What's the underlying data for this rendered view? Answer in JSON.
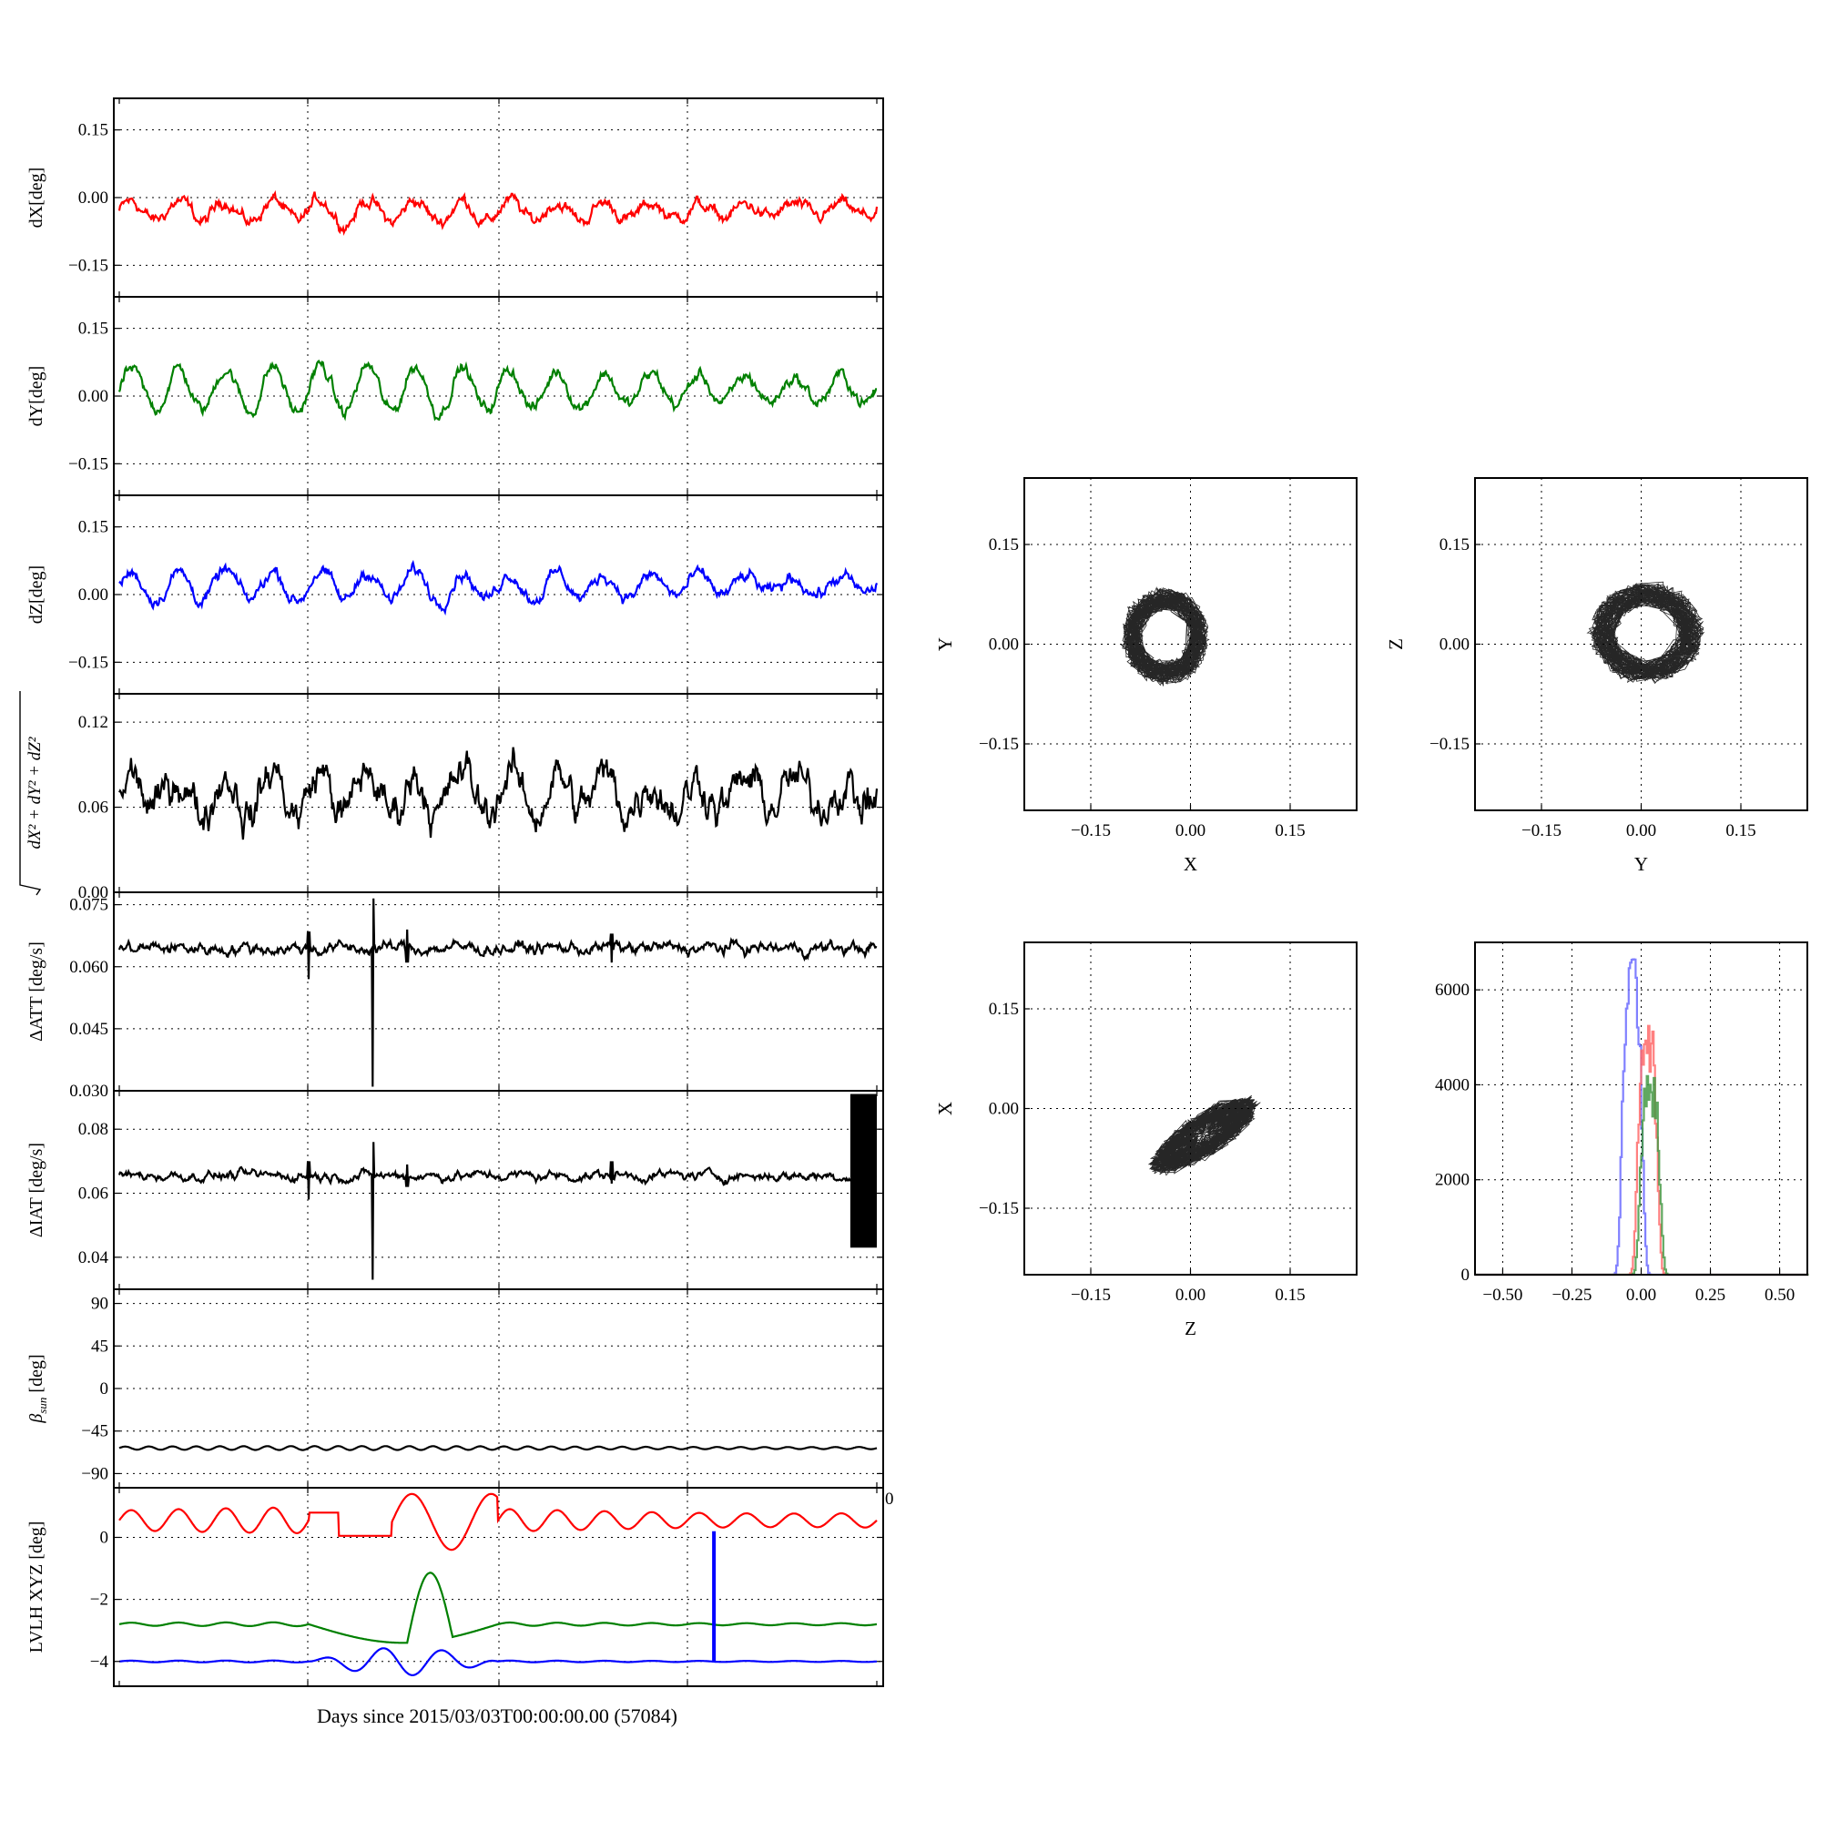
{
  "figure": {
    "xlabel": "Days since 2015/03/03T00:00:00.00 (57084)"
  },
  "chart_data": [
    {
      "type": "line",
      "panel": "dX",
      "ylabel": "dX[deg]",
      "ylim": [
        -0.22,
        0.22
      ],
      "yticks": [
        -0.15,
        0.0,
        0.15
      ],
      "ytick_labels": [
        "−0.15",
        "0.00",
        "0.15"
      ],
      "grid": true,
      "series": [
        {
          "color": "#ff0000",
          "offset": -0.03,
          "amplitude": 0.025,
          "cycles": 16,
          "noise": 0.008
        }
      ]
    },
    {
      "type": "line",
      "panel": "dY",
      "ylabel": "dY[deg]",
      "ylim": [
        -0.22,
        0.22
      ],
      "yticks": [
        -0.15,
        0.0,
        0.15
      ],
      "ytick_labels": [
        "−0.15",
        "0.00",
        "0.15"
      ],
      "grid": true,
      "series": [
        {
          "color": "#008000",
          "offset": 0.015,
          "amplitude": 0.05,
          "cycles": 16,
          "noise": 0.008
        }
      ]
    },
    {
      "type": "line",
      "panel": "dZ",
      "ylabel": "dZ[deg]",
      "ylim": [
        -0.22,
        0.22
      ],
      "yticks": [
        -0.15,
        0.0,
        0.15
      ],
      "ytick_labels": [
        "−0.15",
        "0.00",
        "0.15"
      ],
      "grid": true,
      "series": [
        {
          "color": "#0000ff",
          "offset": 0.02,
          "amplitude": 0.033,
          "cycles": 16,
          "noise": 0.008
        }
      ]
    },
    {
      "type": "line",
      "panel": "total",
      "ylabel_math": "sqrt(dX^2+dY^2+dZ^2)",
      "ylim": [
        0.0,
        0.14
      ],
      "yticks": [
        0.0,
        0.06,
        0.12
      ],
      "ytick_labels": [
        "0.00",
        "0.06",
        "0.12"
      ],
      "grid": true,
      "series": [
        {
          "color": "#000000",
          "offset": 0.07,
          "amplitude": 0.015,
          "cycles": 16,
          "noise": 0.008
        }
      ]
    },
    {
      "type": "line",
      "panel": "dATT",
      "ylabel": "ΔATT [deg/s]",
      "ylim": [
        0.03,
        0.078
      ],
      "yticks": [
        0.03,
        0.045,
        0.06,
        0.075
      ],
      "ytick_labels": [
        "0.030",
        "0.045",
        "0.060",
        "0.075"
      ],
      "grid": true,
      "series": [
        {
          "color": "#000000",
          "offset": 0.0645,
          "noise": 0.0008,
          "spikes": [
            [
              0.25,
              0.057,
              0.0685
            ],
            [
              0.335,
              0.031,
              0.0765
            ],
            [
              0.38,
              0.061,
              0.069
            ],
            [
              0.65,
              0.061,
              0.068
            ]
          ]
        }
      ]
    },
    {
      "type": "line",
      "panel": "dIAT",
      "ylabel": "ΔIAT [deg/s]",
      "ylim": [
        0.03,
        0.092
      ],
      "yticks": [
        0.04,
        0.06,
        0.08
      ],
      "ytick_labels": [
        "0.04",
        "0.06",
        "0.08"
      ],
      "grid": true,
      "series": [
        {
          "color": "#000000",
          "offset": 0.0655,
          "noise": 0.0008,
          "spikes": [
            [
              0.25,
              0.058,
              0.07
            ],
            [
              0.335,
              0.033,
              0.076
            ],
            [
              0.38,
              0.062,
              0.069
            ],
            [
              0.65,
              0.063,
              0.07
            ]
          ],
          "burst": [
            0.965,
            1.0,
            0.043,
            0.091
          ]
        }
      ]
    },
    {
      "type": "line",
      "panel": "beta_sun",
      "ylabel_math": "beta_sun [deg]",
      "ylim": [
        -105,
        105
      ],
      "yticks": [
        -90,
        -45,
        0,
        45,
        90
      ],
      "ytick_labels": [
        "−90",
        "−45",
        "0",
        "45",
        "90"
      ],
      "grid": true,
      "series": [
        {
          "color": "#000000",
          "offset": -63,
          "amplitude": 2,
          "cycles": 32
        }
      ]
    },
    {
      "type": "line",
      "panel": "lvlh",
      "ylabel": "LVLH XYZ [deg]",
      "ylim": [
        -4.8,
        1.6
      ],
      "yticks": [
        -4,
        -2,
        0
      ],
      "ytick_labels": [
        "−4",
        "−2",
        "0"
      ],
      "grid": true,
      "annotation": "0",
      "series": [
        {
          "color": "#ff0000",
          "offset": 0.55,
          "amplitude": 0.4,
          "cycles": 16
        },
        {
          "color": "#008000",
          "offset": -2.8,
          "amplitude": 0.06,
          "cycles": 16
        },
        {
          "color": "#0000ff",
          "offset": -4.0,
          "amplitude": 0.03,
          "cycles": 16,
          "spike": [
            0.785,
            -4.0,
            0.2
          ]
        }
      ]
    },
    {
      "type": "scatter",
      "panel": "X-Y",
      "xlabel": "X",
      "ylabel": "Y",
      "xlim": [
        -0.25,
        0.25
      ],
      "ylim": [
        -0.25,
        0.25
      ],
      "ticks": [
        -0.15,
        0.0,
        0.15
      ],
      "tick_labels": [
        "−0.15",
        "0.00",
        "0.15"
      ],
      "grid": true,
      "cloud": {
        "center": [
          -0.038,
          0.012
        ],
        "radius": [
          0.065,
          0.072
        ],
        "rotation": 0,
        "hollow": true
      }
    },
    {
      "type": "scatter",
      "panel": "Y-Z",
      "xlabel": "Y",
      "ylabel": "Z",
      "xlim": [
        -0.25,
        0.25
      ],
      "ylim": [
        -0.25,
        0.25
      ],
      "ticks": [
        -0.15,
        0.0,
        0.15
      ],
      "tick_labels": [
        "−0.15",
        "0.00",
        "0.15"
      ],
      "grid": true,
      "cloud": {
        "center": [
          0.008,
          0.018
        ],
        "radius": [
          0.085,
          0.075
        ],
        "rotation": 0,
        "hollow": true
      }
    },
    {
      "type": "scatter",
      "panel": "Z-X",
      "xlabel": "Z",
      "ylabel": "X",
      "xlim": [
        -0.25,
        0.25
      ],
      "ylim": [
        -0.25,
        0.25
      ],
      "ticks": [
        -0.15,
        0.0,
        0.15
      ],
      "tick_labels": [
        "−0.15",
        "0.00",
        "0.15"
      ],
      "grid": true,
      "cloud": {
        "center": [
          0.02,
          -0.04
        ],
        "radius": [
          0.095,
          0.03
        ],
        "rotation": 33,
        "hollow": false
      }
    },
    {
      "type": "histogram",
      "panel": "hist",
      "xlim": [
        -0.6,
        0.6
      ],
      "ylim": [
        0,
        7000
      ],
      "xticks": [
        -0.5,
        -0.25,
        0.0,
        0.25,
        0.5
      ],
      "xtick_labels": [
        "−0.50",
        "−0.25",
        "0.00",
        "0.25",
        "0.50"
      ],
      "yticks": [
        0,
        2000,
        4000,
        6000
      ],
      "ytick_labels": [
        "0",
        "2000",
        "4000",
        "6000"
      ],
      "grid": true,
      "series": [
        {
          "color": "#6a6aff",
          "center": -0.035,
          "width": 0.04,
          "peak": 6350
        },
        {
          "color": "#ff6a6a",
          "center": 0.02,
          "width": 0.04,
          "peak": 5000
        },
        {
          "color": "#449944",
          "center": 0.03,
          "width": 0.04,
          "peak": 3900
        }
      ]
    }
  ]
}
